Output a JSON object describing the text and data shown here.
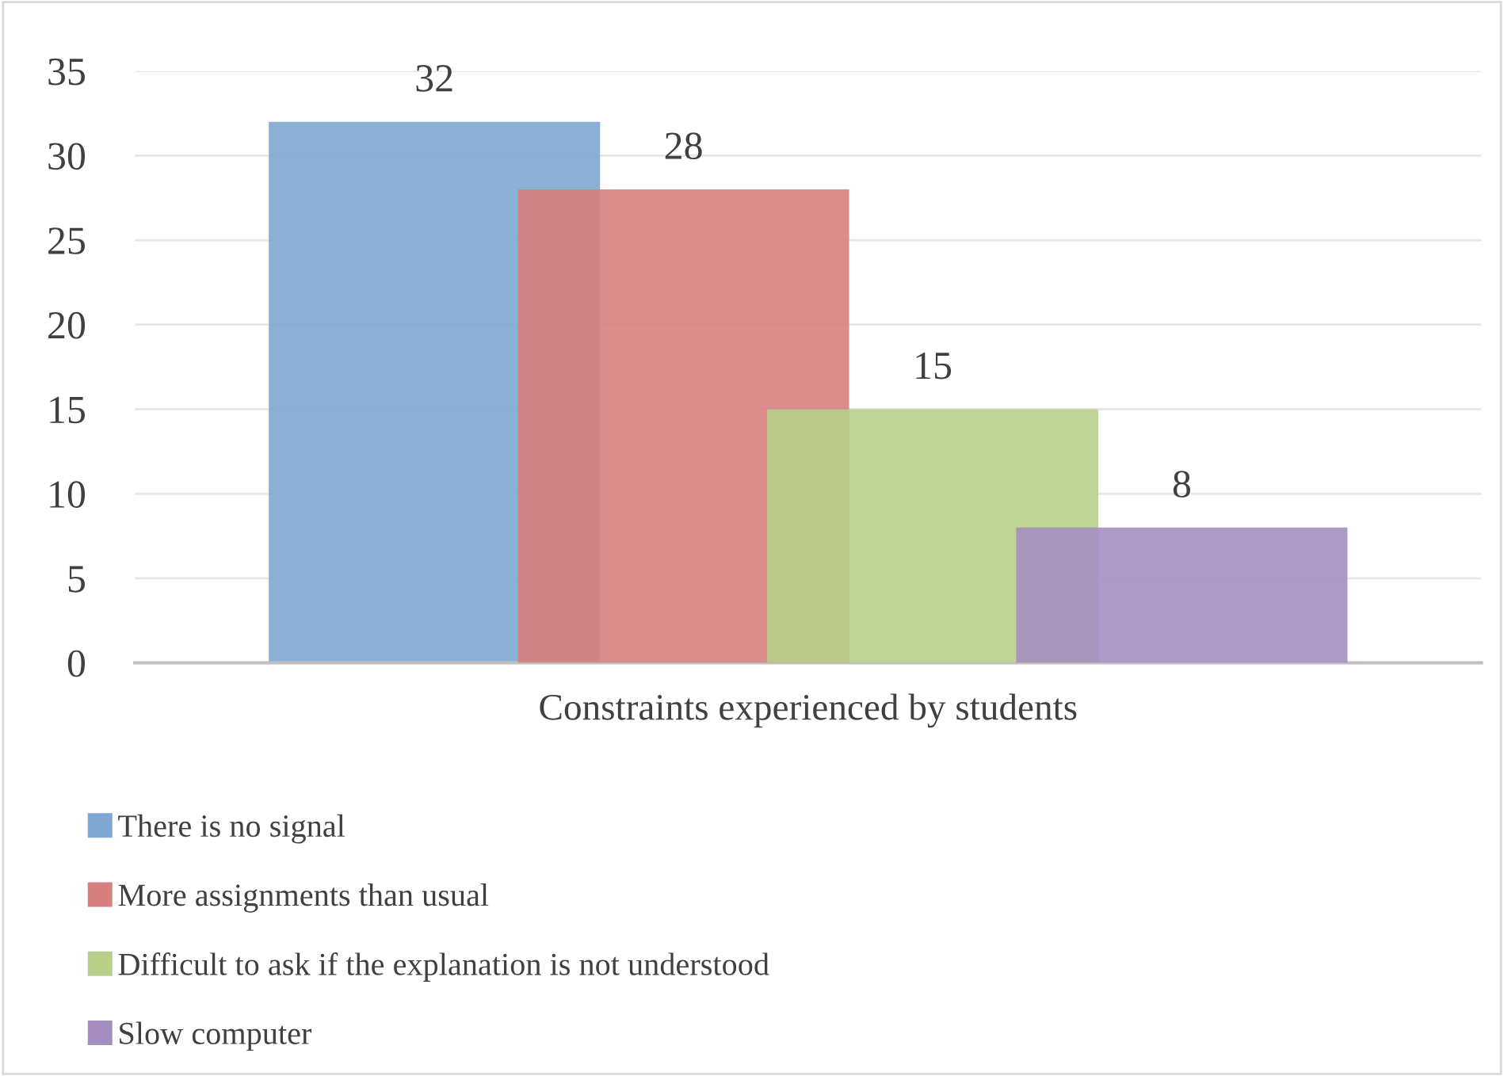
{
  "chart_data": {
    "type": "bar",
    "categories": [
      "Constraints experienced by students"
    ],
    "series": [
      {
        "name": "There is no signal",
        "color": "#7fa7d0",
        "values": [
          32
        ]
      },
      {
        "name": "More assignments than usual",
        "color": "#d77f7f",
        "values": [
          28
        ]
      },
      {
        "name": "Difficult to ask if the explanation is not understood",
        "color": "#b8cf8a",
        "values": [
          15
        ]
      },
      {
        "name": "Slow computer",
        "color": "#a48fc0",
        "values": [
          8
        ]
      }
    ],
    "ylim": [
      0,
      35
    ],
    "yticks": [
      0,
      5,
      10,
      15,
      20,
      25,
      30,
      35
    ],
    "grid": "y",
    "legend": "bottom",
    "data_labels": true
  }
}
